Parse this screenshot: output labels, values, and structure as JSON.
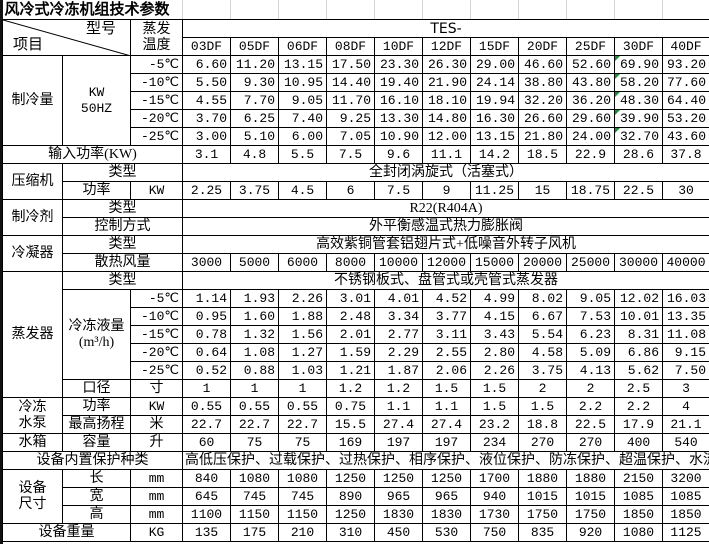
{
  "title": "风冷式冷冻机组技术参数",
  "header": {
    "item_label": "项目",
    "model_label": "型号",
    "evap_temp_label": [
      "蒸发",
      "温度"
    ],
    "series_prefix": "TES-",
    "models": [
      "03DF",
      "05DF",
      "06DF",
      "08DF",
      "10DF",
      "12DF",
      "15DF",
      "20DF",
      "25DF",
      "30DF",
      "40DF"
    ]
  },
  "cooling_capacity": {
    "label": "制冷量",
    "unit_lines": [
      "KW",
      "50HZ"
    ],
    "rows": [
      {
        "temp": "-5℃",
        "values": [
          "6.60",
          "11.20",
          "13.15",
          "17.50",
          "23.30",
          "26.30",
          "29.00",
          "46.60",
          "52.60",
          "69.90",
          "93.20"
        ]
      },
      {
        "temp": "-10℃",
        "values": [
          "5.50",
          "9.30",
          "10.95",
          "14.40",
          "19.40",
          "21.90",
          "24.14",
          "38.80",
          "43.80",
          "58.20",
          "77.60"
        ]
      },
      {
        "temp": "-15℃",
        "values": [
          "4.55",
          "7.70",
          "9.05",
          "11.70",
          "16.10",
          "18.10",
          "19.94",
          "32.20",
          "36.20",
          "48.30",
          "64.40"
        ]
      },
      {
        "temp": "-20℃",
        "values": [
          "3.70",
          "6.25",
          "7.40",
          "9.25",
          "13.30",
          "14.80",
          "16.30",
          "26.60",
          "29.60",
          "39.90",
          "53.20"
        ]
      },
      {
        "temp": "-25℃",
        "values": [
          "3.00",
          "5.10",
          "6.00",
          "7.05",
          "10.90",
          "12.00",
          "13.15",
          "21.80",
          "24.00",
          "32.70",
          "43.60"
        ]
      }
    ]
  },
  "input_power": {
    "label": "输入功率(KW)",
    "values": [
      "3.1",
      "4.8",
      "5.5",
      "7.5",
      "9.6",
      "11.1",
      "14.2",
      "18.5",
      "22.9",
      "28.6",
      "37.8"
    ]
  },
  "compressor": {
    "label": "压缩机",
    "type_label": "类型",
    "type": "全封闭涡旋式（活塞式）",
    "power_label": "功率",
    "power_unit": "KW",
    "power_values": [
      "2.25",
      "3.75",
      "4.5",
      "6",
      "7.5",
      "9",
      "11.25",
      "15",
      "18.75",
      "22.5",
      "30"
    ]
  },
  "refrigerant": {
    "label": "制冷剂",
    "type_label": "类型",
    "type": "R22(R404A)",
    "control_label": "控制方式",
    "control": "外平衡感温式热力膨胀阀"
  },
  "condenser": {
    "label": "冷凝器",
    "type_label": "类型",
    "type": "高效紫铜管套铝翅片式+低噪音外转子风机",
    "airflow_label": "散热风量",
    "airflow_values": [
      "3000",
      "5000",
      "6000",
      "8000",
      "10000",
      "12000",
      "15000",
      "20000",
      "25000",
      "30000",
      "40000"
    ]
  },
  "evaporator": {
    "label": "蒸发器",
    "type_label": "类型",
    "type": "不锈钢板式、盘管式或壳管式蒸发器",
    "flow_label_lines": [
      "冷冻液量",
      "(m³/h)"
    ],
    "rows": [
      {
        "temp": "-5℃",
        "values": [
          "1.14",
          "1.93",
          "2.26",
          "3.01",
          "4.01",
          "4.52",
          "4.99",
          "8.02",
          "9.05",
          "12.02",
          "16.03"
        ]
      },
      {
        "temp": "-10℃",
        "values": [
          "0.95",
          "1.60",
          "1.88",
          "2.48",
          "3.34",
          "3.77",
          "4.15",
          "6.67",
          "7.53",
          "10.01",
          "13.35"
        ]
      },
      {
        "temp": "-15℃",
        "values": [
          "0.78",
          "1.32",
          "1.56",
          "2.01",
          "2.77",
          "3.11",
          "3.43",
          "5.54",
          "6.23",
          "8.31",
          "11.08"
        ]
      },
      {
        "temp": "-20℃",
        "values": [
          "0.64",
          "1.08",
          "1.27",
          "1.59",
          "2.29",
          "2.55",
          "2.80",
          "4.58",
          "5.09",
          "6.86",
          "9.15"
        ]
      },
      {
        "temp": "-25℃",
        "values": [
          "0.52",
          "0.88",
          "1.03",
          "1.21",
          "1.87",
          "2.06",
          "2.26",
          "3.75",
          "4.13",
          "5.62",
          "7.50"
        ]
      }
    ],
    "diameter_label": "口径",
    "diameter_unit": "寸",
    "diameter_values": [
      "1",
      "1",
      "1",
      "1.2",
      "1.2",
      "1.5",
      "1.5",
      "2",
      "2",
      "2.5",
      "3"
    ]
  },
  "pump": {
    "label_lines": [
      "冷冻",
      "水泵"
    ],
    "power_label": "功率",
    "power_unit": "KW",
    "power_values": [
      "0.55",
      "0.55",
      "0.55",
      "0.75",
      "1.1",
      "1.1",
      "1.5",
      "1.5",
      "2.2",
      "2.2",
      "4"
    ],
    "head_label": "最高扬程",
    "head_unit": "米",
    "head_values": [
      "22.7",
      "22.7",
      "22.7",
      "15.5",
      "27.4",
      "27.4",
      "23.2",
      "18.8",
      "22.5",
      "17.9",
      "21.1"
    ]
  },
  "tank": {
    "label": "水箱",
    "capacity_label": "容量",
    "unit": "升",
    "values": [
      "60",
      "75",
      "75",
      "169",
      "197",
      "197",
      "234",
      "270",
      "270",
      "400",
      "540"
    ]
  },
  "protection": {
    "label": "设备内置保护种类",
    "value": "高低压保护、过载保护、过热保护、相序保护、液位保护、防冻保护、超温保护、水流保护"
  },
  "dimensions": {
    "label_lines": [
      "设备",
      "尺寸"
    ],
    "rows": [
      {
        "label": "长",
        "unit": "mm",
        "values": [
          "840",
          "1080",
          "1080",
          "1250",
          "1250",
          "1250",
          "1700",
          "1880",
          "1880",
          "2150",
          "3200"
        ]
      },
      {
        "label": "宽",
        "unit": "mm",
        "values": [
          "645",
          "745",
          "745",
          "890",
          "965",
          "965",
          "940",
          "1015",
          "1015",
          "1085",
          "1085"
        ]
      },
      {
        "label": "高",
        "unit": "mm",
        "values": [
          "1100",
          "1150",
          "1150",
          "1250",
          "1830",
          "1830",
          "1730",
          "1750",
          "1750",
          "1850",
          "1850"
        ]
      }
    ]
  },
  "weight": {
    "label": "设备重量",
    "unit": "KG",
    "values": [
      "135",
      "175",
      "210",
      "310",
      "450",
      "530",
      "750",
      "835",
      "920",
      "1080",
      "1125"
    ]
  },
  "colors": {
    "flag": "#1a8f3a",
    "border": "#000000"
  }
}
